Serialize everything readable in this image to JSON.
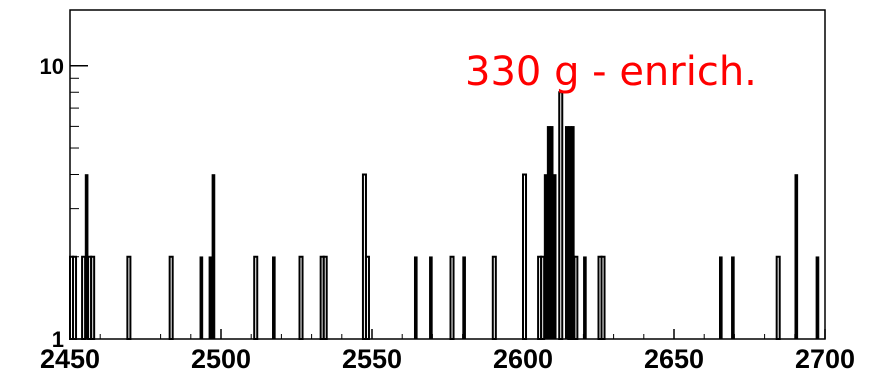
{
  "chart_data": {
    "type": "histogram",
    "title": "",
    "xlabel": "",
    "ylabel": "",
    "xlim": [
      2450,
      2700
    ],
    "ylim": [
      1,
      16
    ],
    "y_scale": "log",
    "bin_width": 1,
    "grid": false,
    "x_ticks": [
      "2450",
      "2500",
      "2550",
      "2600",
      "2650",
      "2700"
    ],
    "y_ticks": [
      "1",
      "10"
    ],
    "annotation": {
      "text": "330 g - enrich.",
      "color": "#ff0000"
    },
    "series": [
      {
        "style": "open",
        "color": "#000000",
        "bins": [
          {
            "x": 2450,
            "y": 2
          },
          {
            "x": 2451,
            "y": 2
          },
          {
            "x": 2454,
            "y": 2
          },
          {
            "x": 2456,
            "y": 2
          },
          {
            "x": 2457,
            "y": 2
          },
          {
            "x": 2469,
            "y": 2
          },
          {
            "x": 2483,
            "y": 2
          },
          {
            "x": 2511,
            "y": 2
          },
          {
            "x": 2526,
            "y": 2
          },
          {
            "x": 2533,
            "y": 2
          },
          {
            "x": 2534,
            "y": 2
          },
          {
            "x": 2547,
            "y": 4
          },
          {
            "x": 2548,
            "y": 2
          },
          {
            "x": 2576,
            "y": 2
          },
          {
            "x": 2590,
            "y": 2
          },
          {
            "x": 2600,
            "y": 4
          },
          {
            "x": 2605,
            "y": 2
          },
          {
            "x": 2606,
            "y": 2
          },
          {
            "x": 2612,
            "y": 8
          },
          {
            "x": 2615,
            "y": 2
          },
          {
            "x": 2616,
            "y": 2
          },
          {
            "x": 2617,
            "y": 2
          },
          {
            "x": 2625,
            "y": 2
          },
          {
            "x": 2626,
            "y": 2
          },
          {
            "x": 2684,
            "y": 2
          }
        ]
      },
      {
        "style": "filled",
        "color": "#000000",
        "bins": [
          {
            "x": 2455,
            "y": 4
          },
          {
            "x": 2493,
            "y": 2
          },
          {
            "x": 2496,
            "y": 2
          },
          {
            "x": 2497,
            "y": 4
          },
          {
            "x": 2517,
            "y": 2
          },
          {
            "x": 2564,
            "y": 2
          },
          {
            "x": 2569,
            "y": 2
          },
          {
            "x": 2580,
            "y": 2
          },
          {
            "x": 2607,
            "y": 4
          },
          {
            "x": 2608,
            "y": 6
          },
          {
            "x": 2609,
            "y": 6
          },
          {
            "x": 2610,
            "y": 4
          },
          {
            "x": 2614,
            "y": 6
          },
          {
            "x": 2615,
            "y": 6
          },
          {
            "x": 2616,
            "y": 6
          },
          {
            "x": 2620,
            "y": 2
          },
          {
            "x": 2665,
            "y": 2
          },
          {
            "x": 2669,
            "y": 2
          },
          {
            "x": 2690,
            "y": 4
          },
          {
            "x": 2697,
            "y": 2
          }
        ]
      }
    ]
  }
}
